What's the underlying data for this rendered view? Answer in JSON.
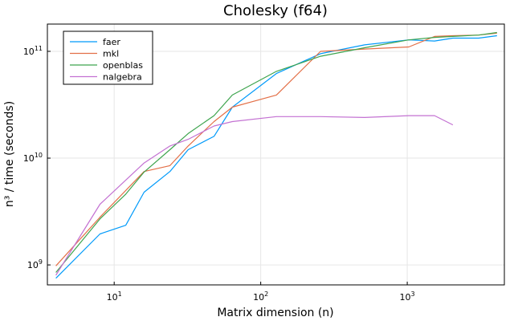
{
  "chart_data": {
    "type": "line",
    "title": "Cholesky (f64)",
    "xlabel": "Matrix dimension (n)",
    "ylabel": "n³ / time (seconds)",
    "xscale": "log",
    "yscale": "log",
    "xlim": [
      3.5,
      4600
    ],
    "ylim": [
      650000000,
      180000000000
    ],
    "grid": true,
    "legend_position": "top-left",
    "x_ticks": [
      {
        "value": 10,
        "base": "10",
        "exp": "1"
      },
      {
        "value": 100,
        "base": "10",
        "exp": "2"
      },
      {
        "value": 1000,
        "base": "10",
        "exp": "3"
      }
    ],
    "y_ticks": [
      {
        "value": 1000000000,
        "base": "10",
        "exp": "9"
      },
      {
        "value": 10000000000,
        "base": "10",
        "exp": "10"
      },
      {
        "value": 100000000000,
        "base": "10",
        "exp": "11"
      }
    ],
    "series": [
      {
        "name": "faer",
        "color": "#009AFA",
        "x": [
          4,
          8,
          12,
          16,
          24,
          32,
          48,
          64,
          128,
          256,
          512,
          1024,
          1536,
          2048,
          3072,
          4096
        ],
        "y": [
          750000000,
          1950000000,
          2350000000,
          4800000000,
          7500000000,
          12000000000,
          16000000000,
          30000000000,
          62000000000,
          95000000000,
          115000000000,
          128000000000,
          125000000000,
          133000000000,
          133000000000,
          140000000000
        ]
      },
      {
        "name": "mkl",
        "color": "#E36F47",
        "x": [
          4,
          8,
          16,
          24,
          32,
          48,
          64,
          128,
          256,
          512,
          1024,
          1536,
          2048,
          3072,
          4096
        ],
        "y": [
          980000000,
          2800000000,
          7500000000,
          8500000000,
          13000000000,
          22000000000,
          30000000000,
          39000000000,
          100000000000,
          105000000000,
          110000000000,
          138000000000,
          140000000000,
          142000000000,
          148000000000
        ]
      },
      {
        "name": "openblas",
        "color": "#3EA44E",
        "x": [
          4,
          8,
          12,
          16,
          24,
          32,
          48,
          64,
          128,
          256,
          512,
          1024,
          1536,
          2048,
          3072,
          4096
        ],
        "y": [
          850000000,
          2700000000,
          4600000000,
          7400000000,
          12000000000,
          17000000000,
          25000000000,
          39000000000,
          65000000000,
          90000000000,
          108000000000,
          128000000000,
          135000000000,
          138000000000,
          142000000000,
          150000000000
        ]
      },
      {
        "name": "nalgebra",
        "color": "#C371D2",
        "x": [
          4,
          8,
          16,
          24,
          32,
          48,
          64,
          128,
          256,
          512,
          1024,
          1536,
          2048
        ],
        "y": [
          800000000,
          3700000000,
          9000000000,
          13000000000,
          15000000000,
          20000000000,
          22000000000,
          24500000000,
          24500000000,
          24000000000,
          25000000000,
          25000000000,
          20500000000
        ]
      }
    ]
  }
}
